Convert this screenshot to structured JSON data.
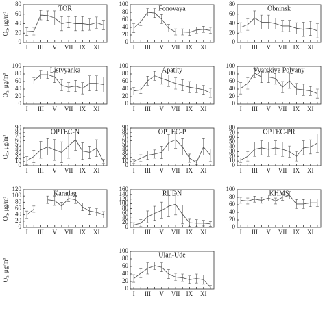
{
  "chart_data": [
    {
      "type": "line",
      "title": "TOR",
      "ylabel": "O₃, μg/m³",
      "categories": [
        "I",
        null,
        "III",
        null,
        "V",
        null,
        "VII",
        null,
        "IX",
        null,
        "XI",
        null
      ],
      "values": [
        23,
        24,
        58,
        57,
        52,
        40,
        43,
        40,
        40,
        38,
        42,
        37
      ],
      "errors": [
        8,
        8,
        10,
        10,
        15,
        15,
        12,
        15,
        15,
        12,
        12,
        10
      ],
      "ylim": [
        0,
        80
      ],
      "yticks": [
        0,
        20,
        40,
        60,
        80
      ],
      "color": "#555555"
    },
    {
      "type": "line",
      "title": "Fonovaya",
      "categories": [
        "I",
        null,
        "III",
        null,
        "V",
        null,
        "VII",
        null,
        "IX",
        null,
        "XI",
        null
      ],
      "values": [
        38,
        55,
        80,
        78,
        62,
        38,
        28,
        28,
        27,
        33,
        35,
        32
      ],
      "errors": [
        12,
        10,
        10,
        12,
        12,
        10,
        8,
        8,
        8,
        8,
        8,
        8
      ],
      "ylim": [
        0,
        100
      ],
      "yticks": [
        0,
        20,
        40,
        60,
        80,
        100
      ],
      "color": "#555555"
    },
    {
      "type": "line",
      "title": "Obninsk",
      "categories": [
        "I",
        null,
        "III",
        null,
        "V",
        null,
        "VII",
        null,
        "IX",
        null,
        "XI",
        null
      ],
      "values": [
        32,
        38,
        52,
        43,
        43,
        40,
        35,
        35,
        30,
        28,
        30,
        25
      ],
      "errors": [
        10,
        12,
        15,
        15,
        15,
        12,
        12,
        12,
        12,
        15,
        15,
        15
      ],
      "ylim": [
        0,
        80
      ],
      "yticks": [
        0,
        20,
        40,
        60,
        80
      ],
      "color": "#555555"
    },
    {
      "type": "line",
      "title": "Listvyanka",
      "ylabel": "O₃, μg/m³",
      "categories": [
        "I",
        null,
        "III",
        null,
        "V",
        null,
        "VII",
        null,
        "IX",
        null,
        "XI",
        null
      ],
      "values": [
        null,
        62,
        78,
        78,
        72,
        50,
        45,
        48,
        42,
        55,
        55,
        52
      ],
      "errors": [
        null,
        8,
        12,
        10,
        15,
        15,
        12,
        15,
        15,
        20,
        20,
        20
      ],
      "ylim": [
        0,
        100
      ],
      "yticks": [
        0,
        20,
        40,
        60,
        80,
        100
      ],
      "color": "#555555"
    },
    {
      "type": "line",
      "title": "Apatity",
      "categories": [
        "I",
        null,
        "III",
        null,
        "V",
        null,
        "VII",
        null,
        "IX",
        null,
        "XI",
        null
      ],
      "values": [
        35,
        38,
        62,
        75,
        68,
        62,
        55,
        50,
        45,
        42,
        38,
        30
      ],
      "errors": [
        10,
        10,
        12,
        12,
        15,
        15,
        15,
        15,
        15,
        12,
        12,
        12
      ],
      "ylim": [
        0,
        100
      ],
      "yticks": [
        0,
        20,
        40,
        60,
        80,
        100
      ],
      "color": "#555555"
    },
    {
      "type": "line",
      "title": "Vyatskiye Polyany",
      "categories": [
        "I",
        null,
        "III",
        null,
        "V",
        null,
        "VII",
        null,
        "IX",
        null,
        "XI",
        null
      ],
      "values": [
        42,
        55,
        82,
        72,
        72,
        68,
        45,
        62,
        40,
        38,
        35,
        28
      ],
      "errors": [
        15,
        15,
        12,
        15,
        15,
        15,
        15,
        20,
        15,
        15,
        12,
        12
      ],
      "ylim": [
        0,
        100
      ],
      "yticks": [
        0,
        20,
        40,
        60,
        80,
        100
      ],
      "color": "#555555"
    },
    {
      "type": "line",
      "title": "OPTEC-N",
      "ylabel": "O₃, μg/m³",
      "categories": [
        "I",
        null,
        "III",
        null,
        "V",
        null,
        "VII",
        null,
        "IX",
        null,
        "XI",
        null
      ],
      "values": [
        12,
        22,
        38,
        45,
        38,
        32,
        48,
        62,
        35,
        32,
        42,
        10
      ],
      "errors": [
        10,
        15,
        20,
        20,
        25,
        25,
        30,
        25,
        20,
        15,
        20,
        5
      ],
      "ylim": [
        0,
        90
      ],
      "yticks": [
        0,
        10,
        20,
        30,
        40,
        50,
        60,
        70,
        80,
        90
      ],
      "color": "#555555"
    },
    {
      "type": "line",
      "title": "OPTEC-P",
      "categories": [
        "I",
        null,
        "III",
        null,
        "V",
        null,
        "VII",
        null,
        "IX",
        null,
        "XI",
        null
      ],
      "values": [
        10,
        18,
        25,
        28,
        32,
        55,
        62,
        45,
        18,
        8,
        45,
        25
      ],
      "errors": [
        5,
        8,
        10,
        10,
        15,
        20,
        20,
        20,
        10,
        5,
        20,
        15
      ],
      "ylim": [
        0,
        90
      ],
      "yticks": [
        0,
        10,
        20,
        30,
        40,
        50,
        60,
        70,
        80,
        90
      ],
      "color": "#555555"
    },
    {
      "type": "line",
      "title": "OPTEC-PR",
      "categories": [
        "I",
        null,
        "III",
        null,
        "V",
        null,
        "VII",
        null,
        "IX",
        null,
        "XI",
        null
      ],
      "values": [
        12,
        20,
        35,
        38,
        35,
        38,
        35,
        30,
        20,
        38,
        40,
        48
      ],
      "errors": [
        5,
        10,
        15,
        15,
        15,
        15,
        15,
        12,
        10,
        15,
        15,
        20
      ],
      "ylim": [
        0,
        80
      ],
      "yticks": [
        0,
        10,
        20,
        30,
        40,
        50,
        60,
        70,
        80
      ],
      "color": "#555555"
    },
    {
      "type": "line",
      "title": "Karadag",
      "ylabel": "O₃, μg/m³",
      "categories": [
        "I",
        null,
        "III",
        null,
        "V",
        null,
        "VII",
        null,
        "IX",
        null,
        "XI",
        null
      ],
      "values": [
        40,
        58,
        null,
        88,
        85,
        68,
        92,
        88,
        65,
        52,
        48,
        40
      ],
      "errors": [
        12,
        10,
        null,
        12,
        15,
        12,
        10,
        12,
        12,
        12,
        12,
        10
      ],
      "ylim": [
        0,
        120
      ],
      "yticks": [
        0,
        20,
        40,
        60,
        80,
        100,
        120
      ],
      "color": "#555555"
    },
    {
      "type": "line",
      "title": "RUDN",
      "categories": [
        "I",
        null,
        "III",
        null,
        "V",
        null,
        "VII",
        null,
        "IX",
        null,
        "XI",
        null
      ],
      "values": [
        10,
        18,
        45,
        60,
        72,
        90,
        98,
        55,
        20,
        18,
        18,
        15
      ],
      "errors": [
        10,
        15,
        25,
        30,
        35,
        45,
        45,
        40,
        15,
        15,
        12,
        10
      ],
      "ylim": [
        0,
        160
      ],
      "yticks": [
        0,
        20,
        40,
        60,
        80,
        100,
        120,
        140,
        160
      ],
      "color": "#555555"
    },
    {
      "type": "line",
      "title": "KHMS",
      "categories": [
        "I",
        null,
        "III",
        null,
        "V",
        null,
        "VII",
        null,
        "IX",
        null,
        "XI",
        null
      ],
      "values": [
        72,
        70,
        75,
        72,
        78,
        70,
        80,
        85,
        62,
        62,
        65,
        65
      ],
      "errors": [
        8,
        8,
        8,
        8,
        8,
        8,
        8,
        10,
        12,
        12,
        10,
        10
      ],
      "ylim": [
        0,
        100
      ],
      "yticks": [
        0,
        20,
        40,
        60,
        80,
        100
      ],
      "color": "#555555"
    },
    {
      "type": "line",
      "title": "Ulan-Ude",
      "ylabel": "O₃, μg/m³",
      "categories": [
        "I",
        null,
        "III",
        null,
        "V",
        null,
        "VII",
        null,
        "IX",
        null,
        "XI",
        null
      ],
      "values": [
        28,
        42,
        55,
        62,
        58,
        40,
        32,
        30,
        25,
        28,
        25,
        5
      ],
      "errors": [
        10,
        12,
        15,
        10,
        12,
        12,
        10,
        10,
        10,
        12,
        12,
        5
      ],
      "ylim": [
        0,
        100
      ],
      "yticks": [
        0,
        20,
        40,
        60,
        80,
        100
      ],
      "color": "#555555"
    }
  ]
}
